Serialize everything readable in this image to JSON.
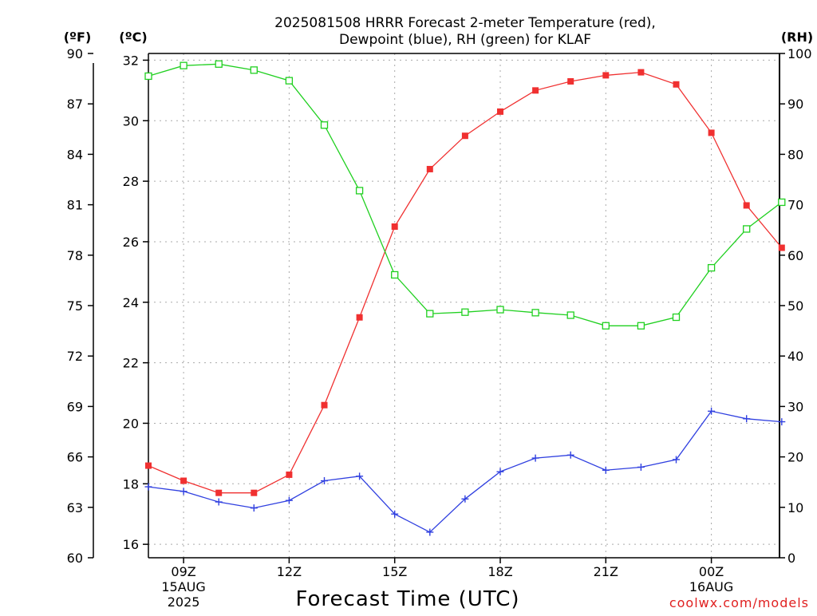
{
  "title": {
    "line1": "2025081508 HRRR Forecast 2-meter Temperature (red),",
    "line2": "Dewpoint (blue), RH (green) for KLAF"
  },
  "credit": "coolwx.com/models",
  "colors": {
    "temperature": "#f03030",
    "dewpoint": "#3040e0",
    "rh": "#20d020",
    "grid": "#aaaaaa",
    "axis": "#000000",
    "credit": "#e02020"
  },
  "chart_data": {
    "type": "line",
    "xlabel": "Forecast Time (UTC)",
    "x_hours_utc": [
      "08Z",
      "09Z",
      "10Z",
      "11Z",
      "12Z",
      "13Z",
      "14Z",
      "15Z",
      "16Z",
      "17Z",
      "18Z",
      "19Z",
      "20Z",
      "21Z",
      "22Z",
      "23Z",
      "00Z",
      "01Z",
      "02Z"
    ],
    "x_ticks": [
      {
        "label": "09Z",
        "sub1": "15AUG",
        "sub2": "2025",
        "index": 1
      },
      {
        "label": "12Z",
        "sub1": "",
        "sub2": "",
        "index": 4
      },
      {
        "label": "15Z",
        "sub1": "",
        "sub2": "",
        "index": 7
      },
      {
        "label": "18Z",
        "sub1": "",
        "sub2": "",
        "index": 10
      },
      {
        "label": "21Z",
        "sub1": "",
        "sub2": "",
        "index": 13
      },
      {
        "label": "00Z",
        "sub1": "16AUG",
        "sub2": "",
        "index": 16
      }
    ],
    "axes": {
      "left_f": {
        "unit_label": "(ºF)",
        "range": [
          60,
          90
        ],
        "ticks": [
          "90",
          "87",
          "84",
          "81",
          "78",
          "75",
          "72",
          "69",
          "66",
          "63",
          "60"
        ]
      },
      "left_c": {
        "unit_label": "(ºC)",
        "range": [
          15.5556,
          32.2222
        ],
        "ticks": [
          "32",
          "30",
          "28",
          "26",
          "24",
          "22",
          "20",
          "18",
          "16"
        ]
      },
      "right_rh": {
        "unit_label": "(RH)",
        "range": [
          0,
          100
        ],
        "ticks": [
          "100",
          "90",
          "80",
          "70",
          "60",
          "50",
          "40",
          "30",
          "20",
          "10",
          "0"
        ]
      }
    },
    "grid": true,
    "series": [
      {
        "key": "temperature",
        "axis": "c",
        "marker": "filled-square",
        "values": [
          18.6,
          18.1,
          17.7,
          17.7,
          18.3,
          20.6,
          23.5,
          26.5,
          28.4,
          29.5,
          30.3,
          31.0,
          31.3,
          31.5,
          31.6,
          31.2,
          29.6,
          27.2,
          25.8
        ]
      },
      {
        "key": "dewpoint",
        "axis": "c",
        "marker": "plus",
        "values": [
          17.9,
          17.75,
          17.4,
          17.2,
          17.45,
          18.1,
          18.25,
          17.0,
          16.4,
          17.5,
          18.4,
          18.85,
          18.95,
          18.45,
          18.55,
          18.8,
          20.4,
          20.15,
          20.05
        ]
      },
      {
        "key": "rh",
        "axis": "rh",
        "marker": "open-square",
        "values": [
          95.5,
          97.6,
          97.9,
          96.7,
          94.6,
          85.8,
          72.8,
          56.1,
          48.4,
          48.7,
          49.2,
          48.6,
          48.1,
          46.0,
          46.0,
          47.7,
          57.5,
          65.2,
          70.5
        ]
      }
    ]
  }
}
